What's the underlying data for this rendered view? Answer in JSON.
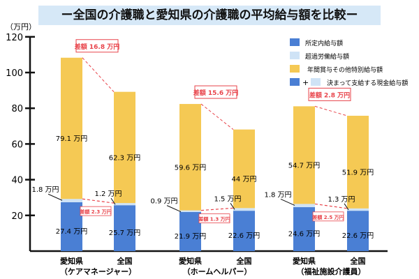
{
  "title": "ー全国の介護職と愛知県の介護職の平均給与額を比較ー",
  "chart_data": {
    "type": "bar",
    "stacked": true,
    "title": "ー全国の介護職と愛知県の介護職の平均給与額を比較ー",
    "ylabel": "（万円）",
    "ylim": [
      0,
      120
    ],
    "yticks": [
      "20",
      "40",
      "60",
      "80",
      "100",
      "120"
    ],
    "unit": "万円",
    "groups": [
      {
        "name": "（ケアマネージャー）",
        "bars": [
          {
            "label": "愛知県",
            "base": 27.4,
            "overtime": 1.8,
            "bonus": 79.1
          },
          {
            "label": "全国",
            "base": 25.7,
            "overtime": 1.2,
            "bonus": 62.3
          }
        ],
        "diff_total": "差額 16.8 万円",
        "diff_fixed": "差額 2.3 万円"
      },
      {
        "name": "（ホームヘルパー）",
        "bars": [
          {
            "label": "愛知県",
            "base": 21.9,
            "overtime": 0.9,
            "bonus": 59.6
          },
          {
            "label": "全国",
            "base": 22.6,
            "overtime": 1.5,
            "bonus": 44
          }
        ],
        "diff_total": "差額 15.6 万円",
        "diff_fixed": "差額 1.3 万円"
      },
      {
        "name": "（福祉施設介護員）",
        "bars": [
          {
            "label": "愛知県",
            "base": 24.6,
            "overtime": 1.8,
            "bonus": 54.7
          },
          {
            "label": "全国",
            "base": 22.6,
            "overtime": 1.3,
            "bonus": 51.9
          }
        ],
        "diff_total": "差額 2.8 万円",
        "diff_fixed": "差額 2.5 万円"
      }
    ],
    "legend": {
      "placement": "top-right",
      "items": [
        {
          "label": "所定内給与額",
          "color": "#4a7fd4"
        },
        {
          "label": "超過労働給与額",
          "color": "#cfe3f6"
        },
        {
          "label": "年間賞与その他特別給与額",
          "color": "#f5c954"
        }
      ],
      "combo_plus": "+",
      "combo_label": "決まって支給する現金給与額"
    },
    "colors": {
      "base": "#4a7fd4",
      "overtime": "#cfe3f6",
      "bonus": "#f5c954",
      "diff": "#e8434a"
    }
  }
}
